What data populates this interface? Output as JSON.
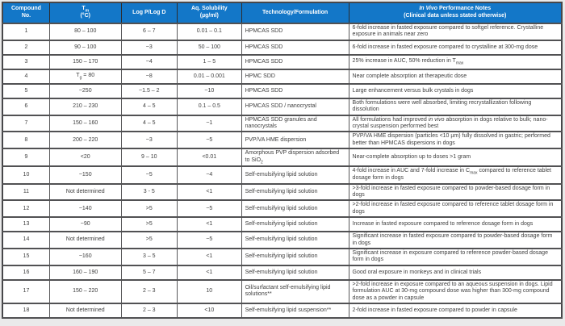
{
  "table": {
    "header": {
      "bg": "#1377C8",
      "fg": "#FFFFFF",
      "columns": [
        {
          "key": "no",
          "label": "Compound\nNo."
        },
        {
          "key": "tm",
          "label": "T_{m}\n(°C)"
        },
        {
          "key": "logp",
          "label": "Log P/Log D"
        },
        {
          "key": "sol",
          "label": "Aq. Solubility\n(µg/ml)"
        },
        {
          "key": "tech",
          "label": "Technology/Formulation"
        },
        {
          "key": "notes",
          "label": "*In Vivo* Performance Notes\n(Clinical data unless stated otherwise)"
        }
      ]
    },
    "rows": [
      {
        "no": "1",
        "tm": "80 – 100",
        "logp": "6 – 7",
        "sol": "0.01 – 0.1",
        "tech": "HPMCAS SDD",
        "notes": "6-fold increase in fasted exposure compared to softgel reference. Crystalline exposure in animals near zero"
      },
      {
        "no": "2",
        "tm": "90 – 100",
        "logp": "~3",
        "sol": "50 – 100",
        "tech": "HPMCAS SDD",
        "notes": "6-fold increase in fasted exposure compared to crystalline at 300-mg dose"
      },
      {
        "no": "3",
        "tm": "150 – 170",
        "logp": "~4",
        "sol": "1 – 5",
        "tech": "HPMCAS SDD",
        "notes": "25% increase in AUC, 50% reduction in T_{max}"
      },
      {
        "no": "4",
        "tm": "T_{g} = 80",
        "logp": "~8",
        "sol": "0.01 – 0.001",
        "tech": "HPMC SDD",
        "notes": "Near complete absorption at therapeutic dose"
      },
      {
        "no": "5",
        "tm": "~250",
        "logp": "~1.5 – 2",
        "sol": "~10",
        "tech": "HPMCAS SDD",
        "notes": "Large enhancement versus bulk crystals in dogs"
      },
      {
        "no": "6",
        "tm": "210 – 230",
        "logp": "4 – 5",
        "sol": "0.1 – 0.5",
        "tech": "HPMCAS SDD / nanocrystal",
        "notes": "Both formulations were well absorbed, limiting recrystallization following dissolution"
      },
      {
        "no": "7",
        "tm": "150 – 160",
        "logp": "4 – 5",
        "sol": "~1",
        "tech": "HPMCAS SDD granules and nanocrystals",
        "notes": "All formulations had improved *in vivo* absorption in dogs relative to bulk; nano-crystal suspension performed best"
      },
      {
        "no": "8",
        "tm": "200 – 220",
        "logp": "~3",
        "sol": "~5",
        "tech": "PVP/VA HME dispersion",
        "notes": "PVP/VA HME dispersion (particles <10 µm) fully dissolved in gastric; performed better than HPMCAS dispersions in dogs"
      },
      {
        "no": "9",
        "tm": "<20",
        "logp": "9 – 10",
        "sol": "<0.01",
        "tech": "Amorphous PVP dispersion adsorbed to SiO_{2}",
        "notes": "Near-complete absorption up to doses >1 gram"
      },
      {
        "no": "10",
        "tm": "~150",
        "logp": "~5",
        "sol": "~4",
        "tech": "Self-emulsifying lipid solution",
        "notes": "4-fold increase in AUC and 7-fold increase in C_{max} compared to reference tablet dosage form in dogs"
      },
      {
        "no": "11",
        "tm": "Not determined",
        "logp": "3 - 5",
        "sol": "<1",
        "tech": "Self-emulsifying lipid solution",
        "notes": ">3-fold increase in fasted exposure compared to powder-based dosage form in dogs"
      },
      {
        "no": "12",
        "tm": "~140",
        "logp": ">5",
        "sol": "~5",
        "tech": "Self-emulsifying lipid solution",
        "notes": ">2-fold increase in fasted exposure compared to reference tablet dosage form in dogs"
      },
      {
        "no": "13",
        "tm": "~90",
        "logp": ">5",
        "sol": "<1",
        "tech": "Self-emulsifying lipid solution",
        "notes": "Increase in fasted exposure compared to reference dosage form in dogs"
      },
      {
        "no": "14",
        "tm": "Not determined",
        "logp": ">5",
        "sol": "~5",
        "tech": "Self-emulsifying lipid solution",
        "notes": "Significant increase in fasted exposure compared to powder-based dosage form in dogs"
      },
      {
        "no": "15",
        "tm": "~160",
        "logp": "3 – 5",
        "sol": "<1",
        "tech": "Self-emulsifying lipid solution",
        "notes": "Significant increase in exposure compared to reference powder-based dosage form in dogs"
      },
      {
        "no": "16",
        "tm": "160 – 190",
        "logp": "5 – 7",
        "sol": "<1",
        "tech": "Self-emulsifying lipid solution",
        "notes": "Good oral exposure in monkeys and in clinical trials"
      },
      {
        "no": "17",
        "tm": "150 – 220",
        "logp": "2 – 3",
        "sol": "10",
        "tech": "Oil/surfactant self-emulsifying lipid solutions**",
        "notes": ">2-fold increase in exposure compared to an aqueous suspension in dogs. Lipid formulation AUC at 30-mg compound dose was higher than 300-mg compound dose as a powder in capsule"
      },
      {
        "no": "18",
        "tm": "Not determined",
        "logp": "2 – 3",
        "sol": "<10",
        "tech": "Self-emulsifying lipid suspension**",
        "notes": "2-fold increase in fasted exposure compared to powder in capsule"
      }
    ]
  },
  "colors": {
    "header_bg": "#1377C8",
    "header_fg": "#FFFFFF",
    "body_text": "#3F3F3F",
    "grid": "#515153",
    "page_bg": "#EAEAEA"
  }
}
